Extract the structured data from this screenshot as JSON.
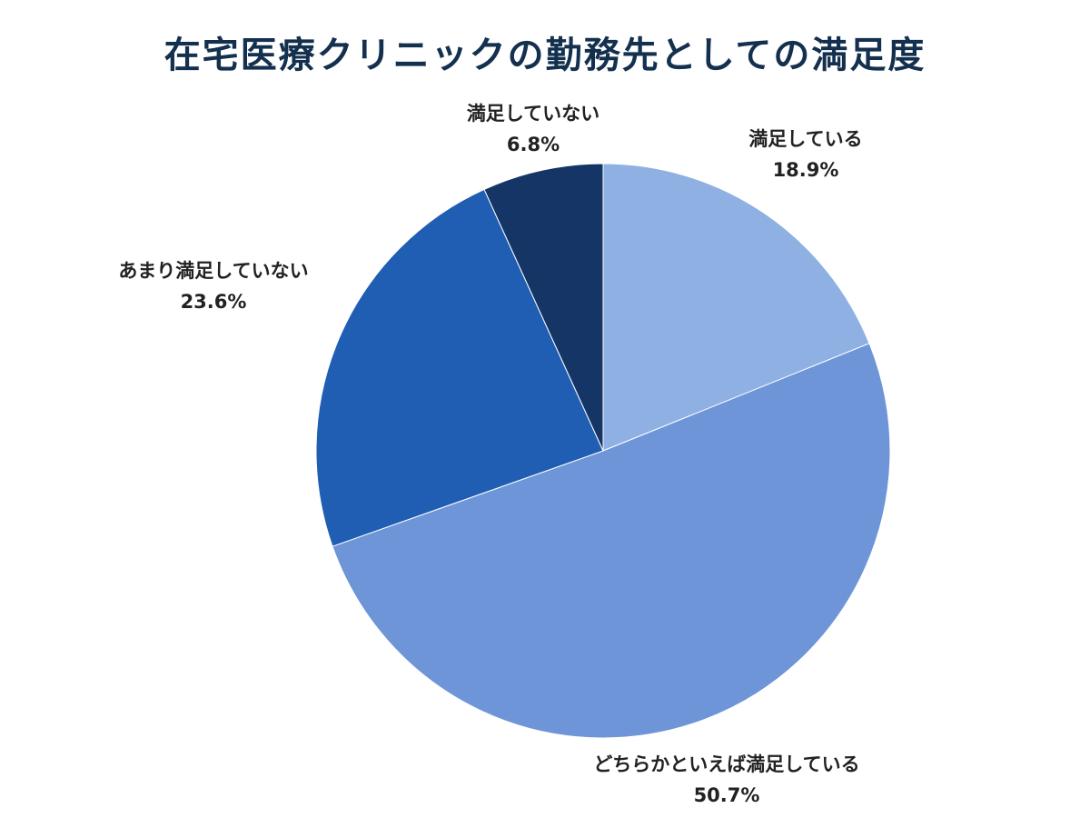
{
  "chart_data": {
    "type": "pie",
    "title": "在宅医療クリニックの勤務先としての満足度",
    "start": "12 o'clock",
    "direction": "clockwise",
    "slices": [
      {
        "label": "満足している",
        "value": 18.9,
        "display": "18.9%",
        "color": "#8eb0e3"
      },
      {
        "label": "どちらかといえば満足している",
        "value": 50.7,
        "display": "50.7%",
        "color": "#6e95d7"
      },
      {
        "label": "あまり満足していない",
        "value": 23.6,
        "display": "23.6%",
        "color": "#1f5eb2"
      },
      {
        "label": "満足していない",
        "value": 6.8,
        "display": "6.8%",
        "color": "#143566"
      }
    ]
  }
}
